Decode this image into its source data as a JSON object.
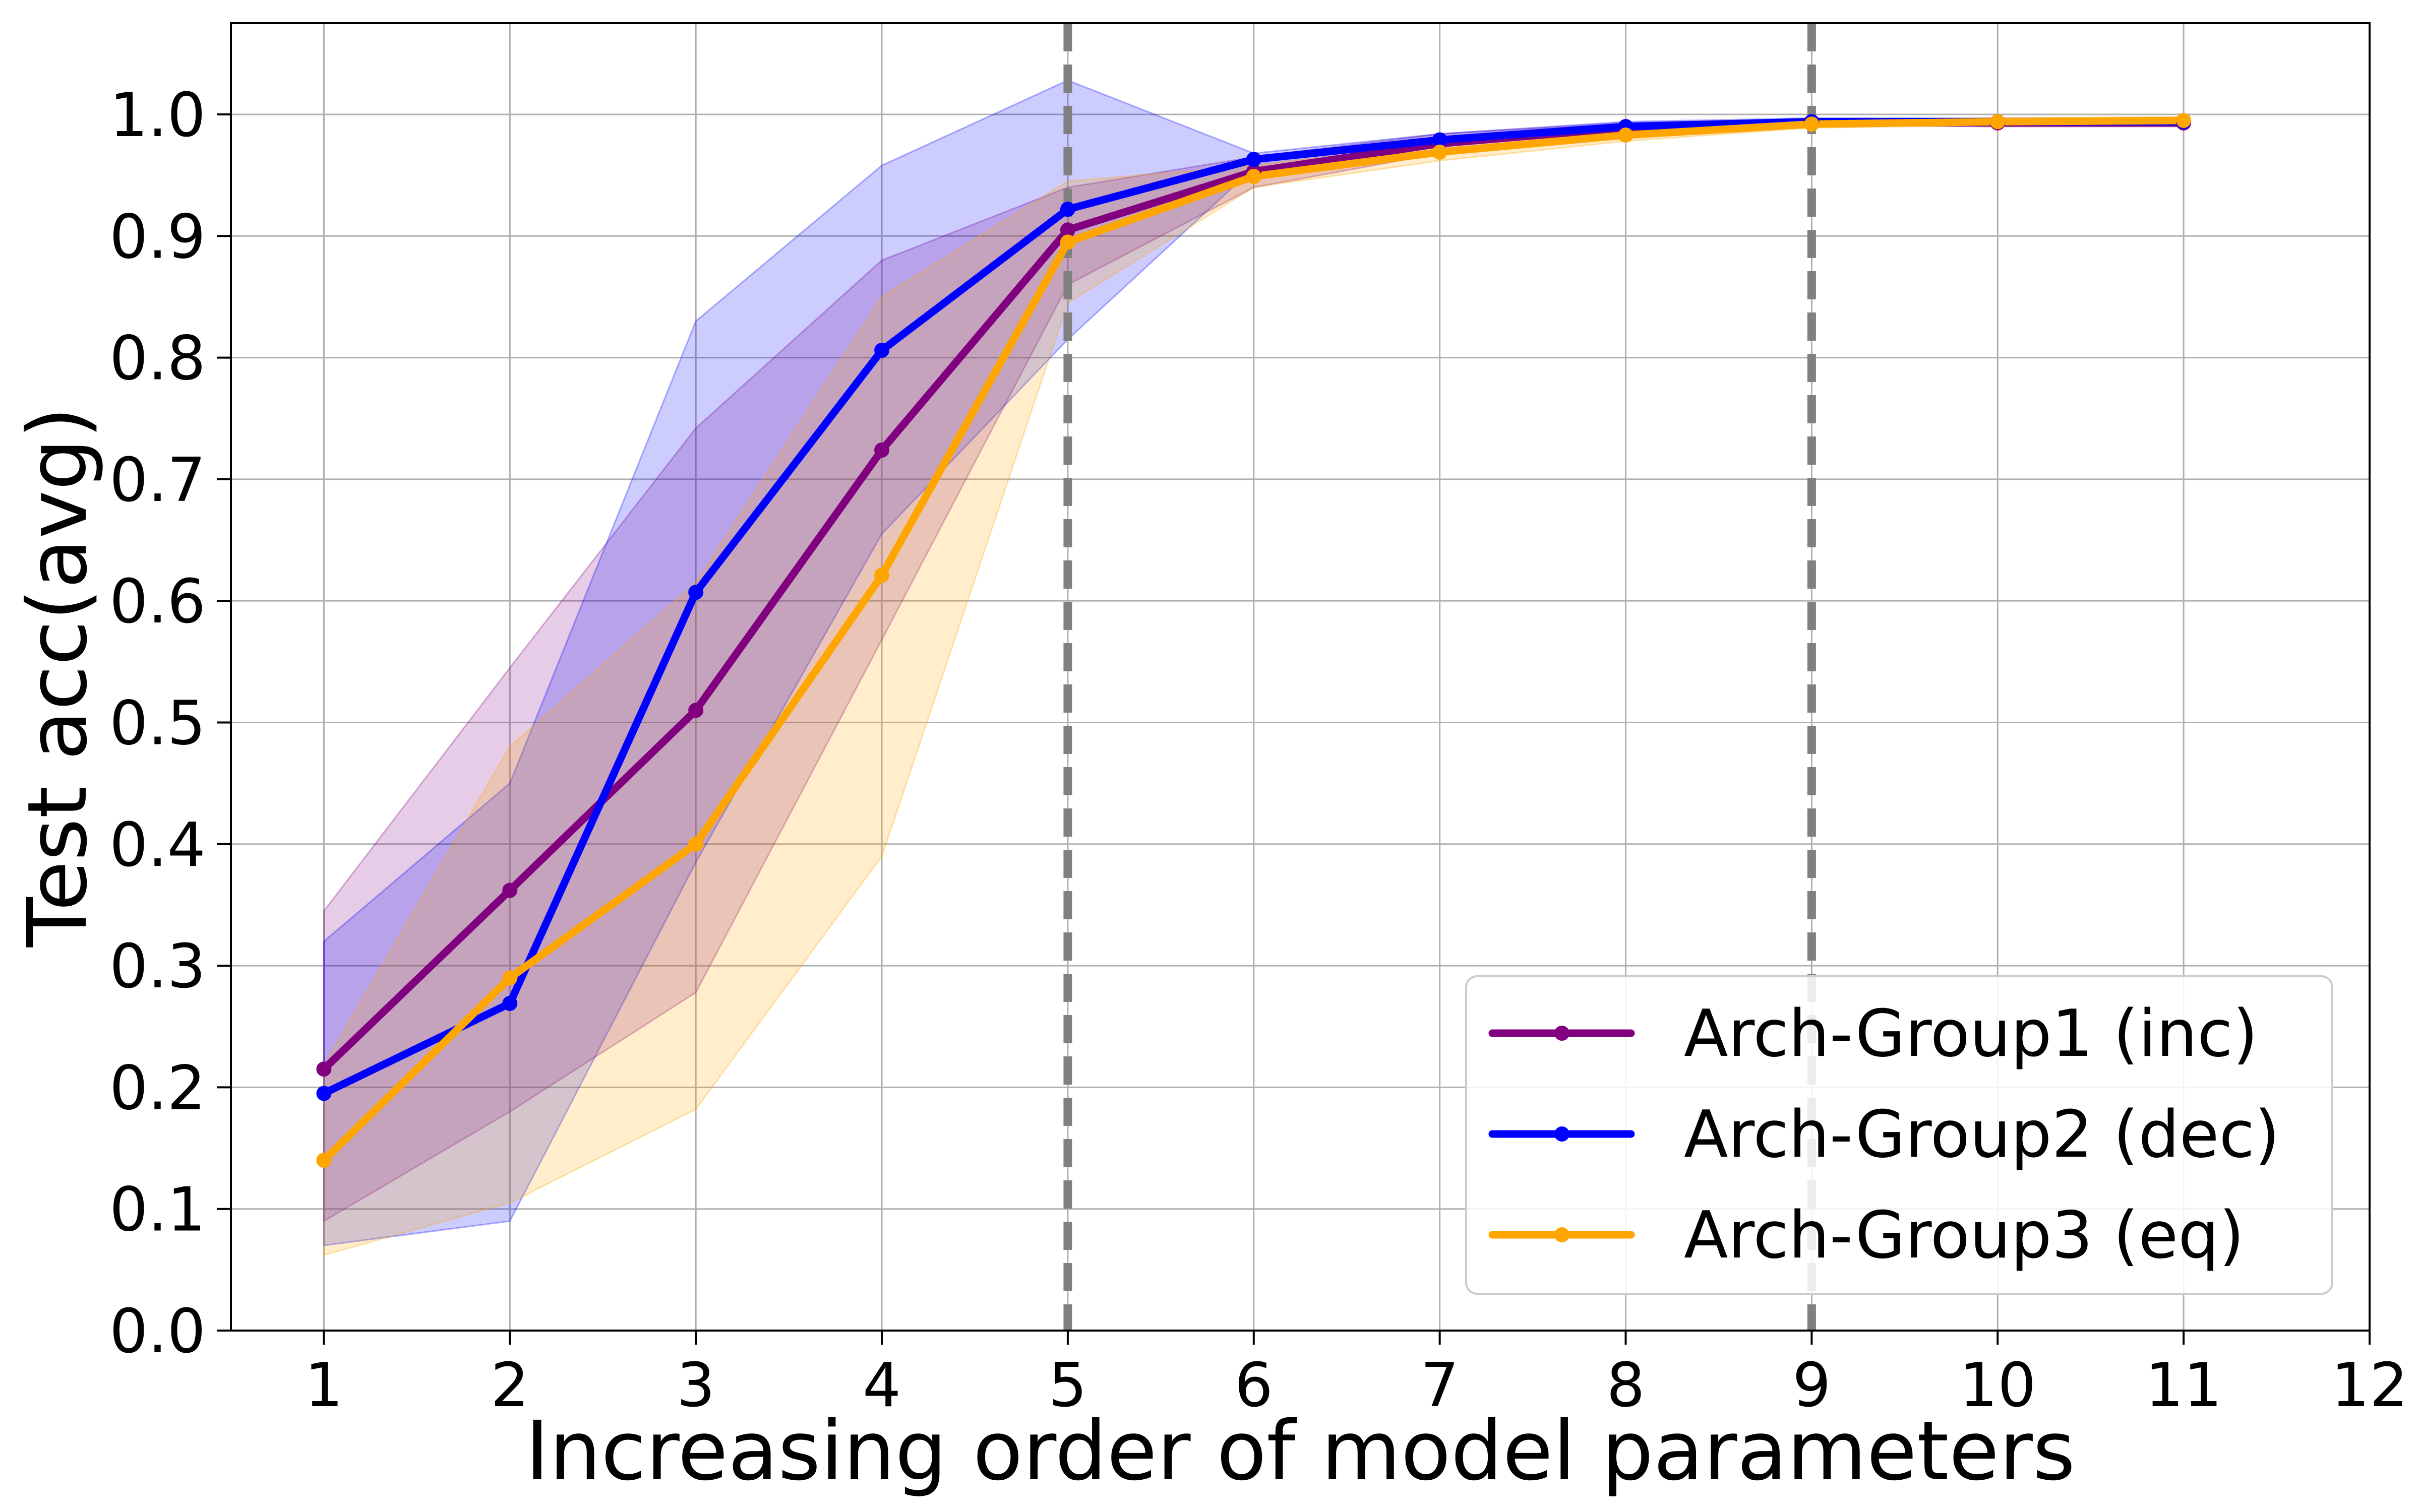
{
  "chart_data": {
    "type": "line",
    "title": "",
    "xlabel": "Increasing order of model parameters",
    "ylabel": "Test acc(avg)",
    "xlim": [
      0.5,
      12
    ],
    "ylim": [
      0,
      1.075
    ],
    "xticks": [
      1,
      2,
      3,
      4,
      5,
      6,
      7,
      8,
      9,
      10,
      11,
      12
    ],
    "yticks": [
      0.0,
      0.1,
      0.2,
      0.3,
      0.4,
      0.5,
      0.6,
      0.7,
      0.8,
      0.9,
      1.0
    ],
    "grid": true,
    "legend_position": "bottom-right",
    "vlines": [
      {
        "x": 5,
        "style": "dashed",
        "color": "#808080"
      },
      {
        "x": 9,
        "style": "dashed",
        "color": "#808080"
      }
    ],
    "series": [
      {
        "name": "Arch-Group1 (inc)",
        "color": "#800080",
        "x": [
          1,
          2,
          3,
          4,
          5,
          6,
          7,
          8,
          9,
          10,
          11
        ],
        "values": [
          0.215,
          0.362,
          0.51,
          0.724,
          0.905,
          0.953,
          0.976,
          0.989,
          0.994,
          0.993,
          0.993
        ],
        "upper": [
          0.345,
          0.545,
          0.742,
          0.88,
          0.94,
          0.965,
          0.984,
          0.993,
          0.996,
          0.996,
          0.996
        ],
        "lower": [
          0.09,
          0.18,
          0.278,
          0.568,
          0.86,
          0.94,
          0.968,
          0.984,
          0.991,
          0.99,
          0.99
        ]
      },
      {
        "name": "Arch-Group2 (dec)",
        "color": "#0000ff",
        "x": [
          1,
          2,
          3,
          4,
          5,
          6,
          7,
          8,
          9,
          10,
          11
        ],
        "values": [
          0.195,
          0.269,
          0.607,
          0.806,
          0.922,
          0.963,
          0.979,
          0.99,
          0.994,
          0.994,
          0.994
        ],
        "upper": [
          0.32,
          0.45,
          0.83,
          0.958,
          1.028,
          0.968,
          0.984,
          0.994,
          0.997,
          0.997,
          0.997
        ],
        "lower": [
          0.07,
          0.09,
          0.385,
          0.655,
          0.815,
          0.956,
          0.974,
          0.986,
          0.991,
          0.991,
          0.991
        ]
      },
      {
        "name": "Arch-Group3 (eq)",
        "color": "#ffa500",
        "x": [
          1,
          2,
          3,
          4,
          5,
          6,
          7,
          8,
          9,
          10,
          11
        ],
        "values": [
          0.14,
          0.29,
          0.4,
          0.621,
          0.895,
          0.949,
          0.969,
          0.983,
          0.992,
          0.994,
          0.995
        ],
        "upper": [
          0.218,
          0.48,
          0.615,
          0.85,
          0.945,
          0.958,
          0.976,
          0.988,
          0.995,
          0.997,
          0.998
        ],
        "lower": [
          0.062,
          0.105,
          0.182,
          0.39,
          0.845,
          0.94,
          0.962,
          0.978,
          0.989,
          0.991,
          0.992
        ]
      }
    ]
  }
}
